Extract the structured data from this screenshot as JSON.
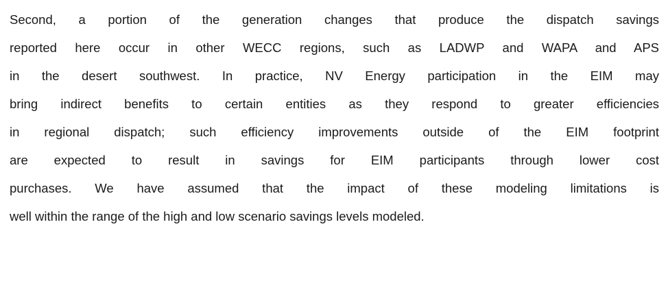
{
  "paragraph": {
    "lines": [
      "Second, a portion of the generation changes that produce the dispatch savings",
      "reported here occur in other WECC regions, such as LADWP and WAPA and APS",
      "in the desert southwest. In practice, NV Energy participation in the EIM may",
      "bring indirect benefits to certain entities as they respond to greater efficiencies",
      "in regional dispatch; such efficiency improvements outside of the EIM footprint",
      "are expected to result in savings for EIM participants through lower cost",
      "purchases.  We have assumed that the impact of these modeling limitations is",
      "well within the range of the high and low scenario savings levels modeled."
    ]
  }
}
